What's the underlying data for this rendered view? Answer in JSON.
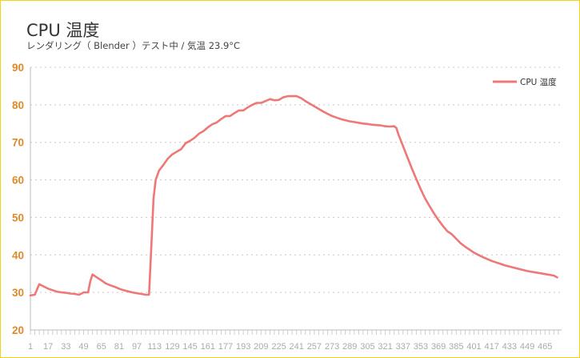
{
  "chart_data": {
    "type": "line",
    "title": "CPU 温度",
    "subtitle": "レンダリング（ Blender ）テスト中  /  気温 23.9°C",
    "xlabel": "",
    "ylabel": "",
    "ylim": [
      20,
      90
    ],
    "yticks": [
      20,
      30,
      40,
      50,
      60,
      70,
      80,
      90
    ],
    "xlim": [
      1,
      480
    ],
    "xtick_labels": [
      1,
      17,
      33,
      49,
      65,
      81,
      97,
      113,
      129,
      145,
      161,
      177,
      193,
      209,
      225,
      241,
      257,
      273,
      289,
      305,
      321,
      337,
      353,
      369,
      385,
      401,
      417,
      433,
      449,
      465
    ],
    "grid": true,
    "legend_position": "top-right",
    "line_color": "#ee7777",
    "axis_tick_color": "#e0892a",
    "series": [
      {
        "name": "CPU 温度",
        "points": [
          [
            1,
            29.2
          ],
          [
            5,
            29.4
          ],
          [
            9,
            32.2
          ],
          [
            13,
            31.6
          ],
          [
            17,
            31.0
          ],
          [
            21,
            30.6
          ],
          [
            25,
            30.2
          ],
          [
            29,
            30.0
          ],
          [
            33,
            29.9
          ],
          [
            37,
            29.7
          ],
          [
            41,
            29.6
          ],
          [
            45,
            29.4
          ],
          [
            49,
            30.0
          ],
          [
            53,
            30.0
          ],
          [
            55,
            33.0
          ],
          [
            57,
            34.8
          ],
          [
            61,
            34.0
          ],
          [
            65,
            33.2
          ],
          [
            69,
            32.4
          ],
          [
            73,
            31.9
          ],
          [
            77,
            31.5
          ],
          [
            81,
            31.0
          ],
          [
            85,
            30.6
          ],
          [
            89,
            30.3
          ],
          [
            93,
            30.0
          ],
          [
            97,
            29.8
          ],
          [
            101,
            29.6
          ],
          [
            105,
            29.4
          ],
          [
            108,
            29.4
          ],
          [
            110,
            42.0
          ],
          [
            112,
            55.0
          ],
          [
            114,
            60.0
          ],
          [
            117,
            62.5
          ],
          [
            121,
            64.0
          ],
          [
            125,
            65.7
          ],
          [
            129,
            66.8
          ],
          [
            133,
            67.5
          ],
          [
            137,
            68.2
          ],
          [
            141,
            69.8
          ],
          [
            145,
            70.4
          ],
          [
            149,
            71.2
          ],
          [
            153,
            72.3
          ],
          [
            157,
            73.0
          ],
          [
            161,
            74.0
          ],
          [
            165,
            74.8
          ],
          [
            169,
            75.3
          ],
          [
            173,
            76.2
          ],
          [
            177,
            77.0
          ],
          [
            181,
            77.0
          ],
          [
            185,
            77.8
          ],
          [
            189,
            78.5
          ],
          [
            193,
            78.5
          ],
          [
            197,
            79.3
          ],
          [
            201,
            80.0
          ],
          [
            205,
            80.5
          ],
          [
            209,
            80.5
          ],
          [
            213,
            81.0
          ],
          [
            217,
            81.5
          ],
          [
            221,
            81.2
          ],
          [
            225,
            81.3
          ],
          [
            229,
            82.0
          ],
          [
            233,
            82.3
          ],
          [
            237,
            82.3
          ],
          [
            241,
            82.3
          ],
          [
            245,
            81.8
          ],
          [
            249,
            81.0
          ],
          [
            253,
            80.3
          ],
          [
            257,
            79.6
          ],
          [
            261,
            78.9
          ],
          [
            265,
            78.2
          ],
          [
            269,
            77.6
          ],
          [
            273,
            77.0
          ],
          [
            277,
            76.6
          ],
          [
            281,
            76.2
          ],
          [
            285,
            75.9
          ],
          [
            289,
            75.6
          ],
          [
            293,
            75.4
          ],
          [
            297,
            75.2
          ],
          [
            301,
            75.0
          ],
          [
            305,
            74.9
          ],
          [
            309,
            74.7
          ],
          [
            313,
            74.6
          ],
          [
            317,
            74.5
          ],
          [
            321,
            74.3
          ],
          [
            325,
            74.2
          ],
          [
            329,
            74.3
          ],
          [
            331,
            73.8
          ],
          [
            333,
            72.0
          ],
          [
            337,
            69.0
          ],
          [
            341,
            66.0
          ],
          [
            345,
            63.0
          ],
          [
            349,
            60.2
          ],
          [
            353,
            57.5
          ],
          [
            357,
            55.0
          ],
          [
            361,
            53.0
          ],
          [
            365,
            51.0
          ],
          [
            369,
            49.3
          ],
          [
            373,
            47.7
          ],
          [
            377,
            46.3
          ],
          [
            381,
            45.5
          ],
          [
            385,
            44.3
          ],
          [
            389,
            43.1
          ],
          [
            393,
            42.2
          ],
          [
            397,
            41.4
          ],
          [
            401,
            40.6
          ],
          [
            405,
            40.0
          ],
          [
            409,
            39.4
          ],
          [
            413,
            38.9
          ],
          [
            417,
            38.4
          ],
          [
            421,
            38.0
          ],
          [
            425,
            37.6
          ],
          [
            429,
            37.2
          ],
          [
            433,
            36.9
          ],
          [
            437,
            36.6
          ],
          [
            441,
            36.3
          ],
          [
            445,
            36.0
          ],
          [
            449,
            35.7
          ],
          [
            453,
            35.5
          ],
          [
            457,
            35.3
          ],
          [
            461,
            35.1
          ],
          [
            465,
            34.9
          ],
          [
            469,
            34.7
          ],
          [
            473,
            34.5
          ],
          [
            476,
            34.0
          ]
        ]
      }
    ]
  }
}
